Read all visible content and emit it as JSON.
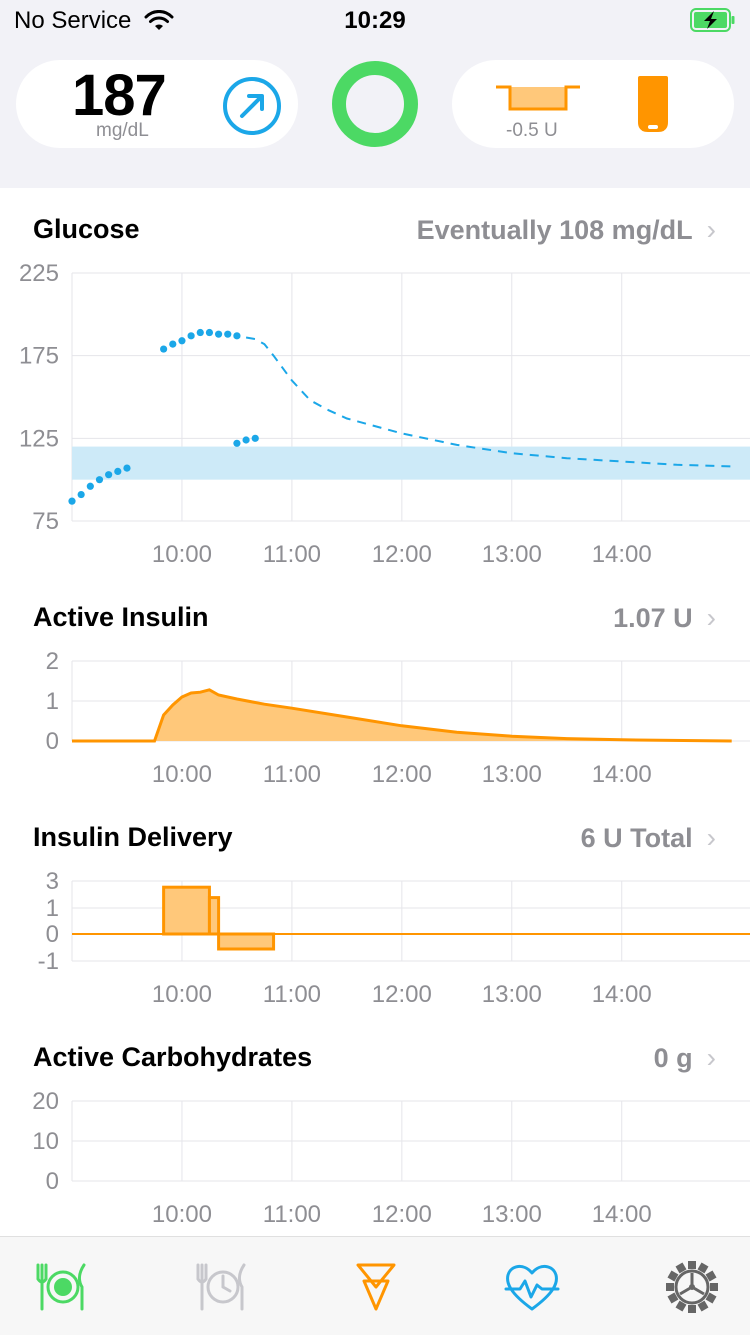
{
  "status_bar": {
    "carrier": "No Service",
    "time": "10:29"
  },
  "hud": {
    "glucose_value": "187",
    "glucose_unit": "mg/dL",
    "basal_rate": "-0.5 U",
    "colors": {
      "trend": "#1ba7e8",
      "loop": "#4cd964",
      "insulin": "#ff9500"
    }
  },
  "charts": {
    "glucose": {
      "title": "Glucose",
      "value": "Eventually 108 mg/dL"
    },
    "active_insulin": {
      "title": "Active Insulin",
      "value": "1.07 U"
    },
    "insulin_delivery": {
      "title": "Insulin Delivery",
      "value": "6 U Total"
    },
    "active_carbs": {
      "title": "Active Carbohydrates",
      "value": "0 g"
    }
  },
  "chart_data": [
    {
      "type": "scatter",
      "chart": "glucose",
      "x_ticks": [
        "10:00",
        "11:00",
        "12:00",
        "13:00",
        "14:00"
      ],
      "y_ticks": [
        "225",
        "175",
        "125",
        "75"
      ],
      "ylim": [
        75,
        225
      ],
      "target_range": [
        100,
        120
      ],
      "series": [
        {
          "points": [
            [
              "09:00",
              87
            ],
            [
              "09:05",
              91
            ],
            [
              "09:10",
              96
            ],
            [
              "09:15",
              100
            ],
            [
              "09:20",
              103
            ],
            [
              "09:25",
              105
            ],
            [
              "09:30",
              107
            ]
          ]
        },
        {
          "points": [
            [
              "09:50",
              179
            ],
            [
              "09:55",
              182
            ],
            [
              "10:00",
              184
            ],
            [
              "10:05",
              187
            ],
            [
              "10:10",
              189
            ],
            [
              "10:15",
              189
            ],
            [
              "10:20",
              188
            ],
            [
              "10:25",
              188
            ],
            [
              "10:30",
              187
            ]
          ]
        },
        {
          "points": [
            [
              "10:30",
              122
            ],
            [
              "10:35",
              124
            ],
            [
              "10:40",
              125
            ]
          ]
        },
        {
          "points": [
            [
              "10:35",
              186
            ],
            [
              "10:40",
              185
            ],
            [
              "10:45",
              182
            ],
            [
              "10:50",
              175
            ],
            [
              "11:00",
              160
            ],
            [
              "11:10",
              148
            ],
            [
              "11:20",
              142
            ],
            [
              "11:30",
              137
            ],
            [
              "12:00",
              128
            ],
            [
              "12:30",
              121
            ],
            [
              "13:00",
              116
            ],
            [
              "13:30",
              113
            ],
            [
              "14:00",
              111
            ],
            [
              "14:30",
              109
            ],
            [
              "15:00",
              108
            ]
          ]
        }
      ]
    },
    {
      "type": "area",
      "chart": "active_insulin",
      "x_ticks": [
        "10:00",
        "11:00",
        "12:00",
        "13:00",
        "14:00"
      ],
      "y_ticks": [
        "2",
        "1",
        "0"
      ],
      "ylim": [
        0,
        2
      ],
      "points": [
        [
          "09:00",
          0
        ],
        [
          "09:45",
          0
        ],
        [
          "09:50",
          0.65
        ],
        [
          "09:55",
          0.9
        ],
        [
          "10:00",
          1.1
        ],
        [
          "10:05",
          1.2
        ],
        [
          "10:10",
          1.22
        ],
        [
          "10:15",
          1.28
        ],
        [
          "10:20",
          1.15
        ],
        [
          "10:30",
          1.05
        ],
        [
          "10:45",
          0.92
        ],
        [
          "11:00",
          0.82
        ],
        [
          "11:30",
          0.6
        ],
        [
          "12:00",
          0.38
        ],
        [
          "12:30",
          0.22
        ],
        [
          "13:00",
          0.12
        ],
        [
          "13:30",
          0.06
        ],
        [
          "14:00",
          0.03
        ],
        [
          "15:00",
          0
        ]
      ]
    },
    {
      "type": "area",
      "chart": "insulin_delivery",
      "x_ticks": [
        "10:00",
        "11:00",
        "12:00",
        "13:00",
        "14:00"
      ],
      "y_ticks": [
        "3",
        "1",
        "0",
        "-1"
      ],
      "steps": [
        [
          "09:50",
          "10:15",
          1.8
        ],
        [
          "10:15",
          "10:20",
          1.4
        ],
        [
          "10:20",
          "10:50",
          -0.6
        ]
      ]
    },
    {
      "type": "area",
      "chart": "active_carbs",
      "x_ticks": [
        "10:00",
        "11:00",
        "12:00",
        "13:00",
        "14:00"
      ],
      "y_ticks": [
        "20",
        "10",
        "0"
      ],
      "ylim": [
        0,
        20
      ],
      "points": []
    }
  ]
}
